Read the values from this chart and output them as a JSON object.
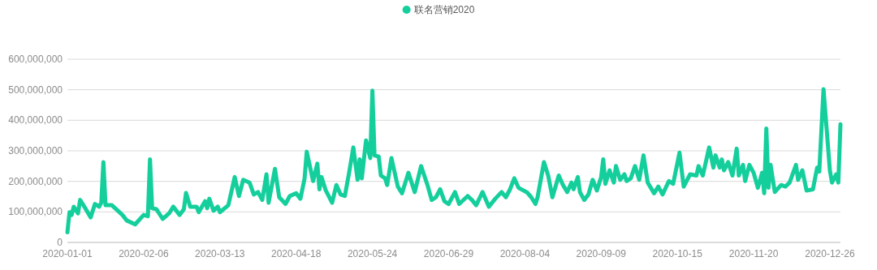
{
  "chart_data": {
    "type": "line",
    "x": [
      "2020-01-01",
      "2020-01-02",
      "2020-01-03",
      "2020-01-04",
      "2020-01-06",
      "2020-01-07",
      "2020-01-09",
      "2020-01-12",
      "2020-01-14",
      "2020-01-16",
      "2020-01-17",
      "2020-01-18",
      "2020-01-19",
      "2020-01-22",
      "2020-01-27",
      "2020-01-29",
      "2020-02-02",
      "2020-02-06",
      "2020-02-08",
      "2020-02-09",
      "2020-02-10",
      "2020-02-12",
      "2020-02-15",
      "2020-02-18",
      "2020-02-20",
      "2020-02-23",
      "2020-02-25",
      "2020-02-26",
      "2020-02-28",
      "2020-03-02",
      "2020-03-03",
      "2020-03-06",
      "2020-03-07",
      "2020-03-08",
      "2020-03-10",
      "2020-03-12",
      "2020-03-13",
      "2020-03-17",
      "2020-03-20",
      "2020-03-22",
      "2020-03-24",
      "2020-03-27",
      "2020-03-29",
      "2020-03-31",
      "2020-04-02",
      "2020-04-04",
      "2020-04-05",
      "2020-04-08",
      "2020-04-10",
      "2020-04-13",
      "2020-04-15",
      "2020-04-18",
      "2020-04-20",
      "2020-04-22",
      "2020-04-23",
      "2020-04-26",
      "2020-04-28",
      "2020-04-29",
      "2020-04-30",
      "2020-05-02",
      "2020-05-05",
      "2020-05-07",
      "2020-05-09",
      "2020-05-11",
      "2020-05-13",
      "2020-05-15",
      "2020-05-17",
      "2020-05-18",
      "2020-05-19",
      "2020-05-21",
      "2020-05-23",
      "2020-05-24",
      "2020-05-25",
      "2020-05-27",
      "2020-05-28",
      "2020-05-30",
      "2020-05-31",
      "2020-06-02",
      "2020-06-05",
      "2020-06-07",
      "2020-06-10",
      "2020-06-13",
      "2020-06-16",
      "2020-06-19",
      "2020-06-21",
      "2020-06-23",
      "2020-06-25",
      "2020-06-27",
      "2020-06-29",
      "2020-07-02",
      "2020-07-04",
      "2020-07-08",
      "2020-07-10",
      "2020-07-12",
      "2020-07-15",
      "2020-07-18",
      "2020-07-21",
      "2020-07-24",
      "2020-07-26",
      "2020-07-28",
      "2020-07-30",
      "2020-08-01",
      "2020-08-05",
      "2020-08-07",
      "2020-08-09",
      "2020-08-10",
      "2020-08-13",
      "2020-08-15",
      "2020-08-17",
      "2020-08-20",
      "2020-08-22",
      "2020-08-24",
      "2020-08-26",
      "2020-08-27",
      "2020-08-29",
      "2020-08-30",
      "2020-09-01",
      "2020-09-03",
      "2020-09-05",
      "2020-09-07",
      "2020-09-09",
      "2020-09-10",
      "2020-09-11",
      "2020-09-13",
      "2020-09-15",
      "2020-09-16",
      "2020-09-18",
      "2020-09-20",
      "2020-09-21",
      "2020-09-23",
      "2020-09-25",
      "2020-09-27",
      "2020-09-29",
      "2020-10-01",
      "2020-10-04",
      "2020-10-06",
      "2020-10-08",
      "2020-10-11",
      "2020-10-13",
      "2020-10-16",
      "2020-10-18",
      "2020-10-21",
      "2020-10-24",
      "2020-10-25",
      "2020-10-27",
      "2020-10-30",
      "2020-11-01",
      "2020-11-02",
      "2020-11-04",
      "2020-11-05",
      "2020-11-06",
      "2020-11-08",
      "2020-11-10",
      "2020-11-12",
      "2020-11-13",
      "2020-11-15",
      "2020-11-16",
      "2020-11-18",
      "2020-11-20",
      "2020-11-22",
      "2020-11-24",
      "2020-11-25",
      "2020-11-26",
      "2020-11-27",
      "2020-11-28",
      "2020-11-30",
      "2020-12-03",
      "2020-12-05",
      "2020-12-07",
      "2020-12-10",
      "2020-12-11",
      "2020-12-13",
      "2020-12-15",
      "2020-12-18",
      "2020-12-20",
      "2020-12-21",
      "2020-12-23",
      "2020-12-25",
      "2020-12-26",
      "2020-12-27",
      "2020-12-29",
      "2020-12-30",
      "2020-12-31"
    ],
    "series": [
      {
        "name": "联名营销2020",
        "color": "#14cf9c",
        "values": [
          33000000,
          99000000,
          90000000,
          117000000,
          95000000,
          139000000,
          117000000,
          82000000,
          126000000,
          117000000,
          130000000,
          263000000,
          122000000,
          122000000,
          90000000,
          72000000,
          59000000,
          90000000,
          86000000,
          272000000,
          112000000,
          109000000,
          77000000,
          95000000,
          117000000,
          90000000,
          109000000,
          162000000,
          117000000,
          117000000,
          99000000,
          135000000,
          112000000,
          143000000,
          104000000,
          117000000,
          99000000,
          122000000,
          214000000,
          152000000,
          205000000,
          196000000,
          157000000,
          165000000,
          139000000,
          223000000,
          130000000,
          241000000,
          148000000,
          126000000,
          152000000,
          161000000,
          143000000,
          210000000,
          297000000,
          201000000,
          258000000,
          174000000,
          214000000,
          170000000,
          130000000,
          188000000,
          157000000,
          152000000,
          228000000,
          311000000,
          205000000,
          272000000,
          210000000,
          334000000,
          276000000,
          497000000,
          285000000,
          281000000,
          219000000,
          210000000,
          188000000,
          276000000,
          183000000,
          161000000,
          228000000,
          165000000,
          250000000,
          188000000,
          139000000,
          148000000,
          174000000,
          135000000,
          126000000,
          165000000,
          126000000,
          152000000,
          139000000,
          122000000,
          165000000,
          117000000,
          143000000,
          165000000,
          148000000,
          174000000,
          210000000,
          179000000,
          164000000,
          148000000,
          126000000,
          148000000,
          263000000,
          219000000,
          148000000,
          219000000,
          188000000,
          165000000,
          196000000,
          174000000,
          214000000,
          165000000,
          139000000,
          157000000,
          205000000,
          170000000,
          214000000,
          272000000,
          192000000,
          236000000,
          196000000,
          250000000,
          205000000,
          223000000,
          201000000,
          210000000,
          250000000,
          205000000,
          285000000,
          196000000,
          161000000,
          183000000,
          157000000,
          201000000,
          192000000,
          294000000,
          183000000,
          223000000,
          219000000,
          250000000,
          219000000,
          311000000,
          245000000,
          285000000,
          245000000,
          272000000,
          236000000,
          263000000,
          219000000,
          307000000,
          219000000,
          254000000,
          201000000,
          254000000,
          228000000,
          179000000,
          228000000,
          161000000,
          373000000,
          179000000,
          254000000,
          165000000,
          188000000,
          183000000,
          196000000,
          254000000,
          205000000,
          236000000,
          170000000,
          174000000,
          245000000,
          232000000,
          502000000,
          325000000,
          236000000,
          196000000,
          223000000,
          196000000,
          387000000
        ]
      }
    ],
    "xlim": [
      "2020-01-01",
      "2020-12-31"
    ],
    "xticks": [
      "2020-01-01",
      "2020-02-06",
      "2020-03-13",
      "2020-04-18",
      "2020-05-24",
      "2020-06-29",
      "2020-08-04",
      "2020-09-09",
      "2020-10-15",
      "2020-11-20",
      "2020-12-26"
    ],
    "ylim": [
      0,
      600000000
    ],
    "yticks": [
      0,
      {
        "value": 100000000,
        "label": "100,000,000"
      },
      {
        "value": 200000000,
        "label": "200,000,000"
      },
      {
        "value": 300000000,
        "label": "300,000,000"
      },
      {
        "value": 400000000,
        "label": "400,000,000"
      },
      {
        "value": 500000000,
        "label": "500,000,000"
      },
      {
        "value": 600000000,
        "label": "600,000,000"
      }
    ],
    "grid": "y",
    "legend": "top"
  }
}
